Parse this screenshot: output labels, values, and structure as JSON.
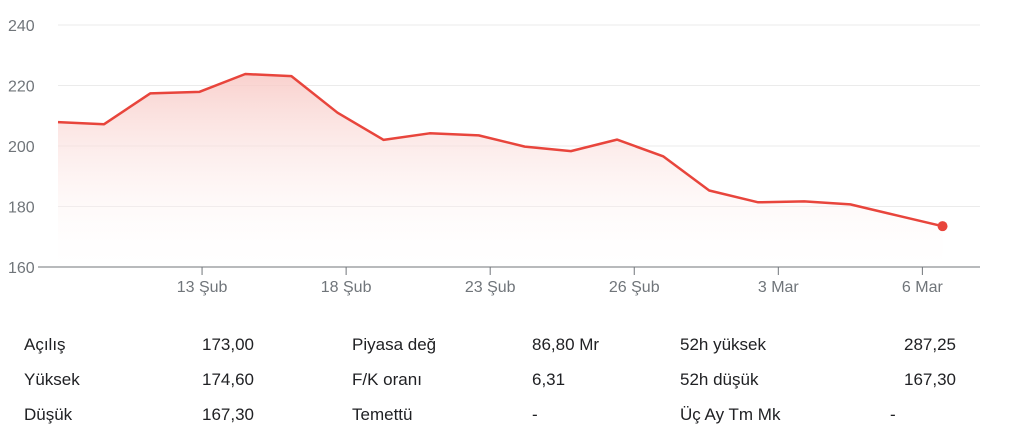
{
  "chart_data": {
    "type": "area",
    "y_ticks": [
      160,
      180,
      200,
      220,
      240
    ],
    "ylim": [
      160,
      240
    ],
    "x_tick_labels": [
      "13 Şub",
      "18 Şub",
      "23 Şub",
      "26 Şub",
      "3 Mar",
      "6 Mar"
    ],
    "x_tick_positions": [
      7,
      12,
      17,
      22,
      27,
      32
    ],
    "x_range": [
      2,
      34
    ],
    "points": [
      {
        "x": 2,
        "y": 207.9
      },
      {
        "x": 3.6,
        "y": 207.2
      },
      {
        "x": 5.2,
        "y": 217.4
      },
      {
        "x": 6.9,
        "y": 217.9
      },
      {
        "x": 8.5,
        "y": 223.8
      },
      {
        "x": 10.1,
        "y": 223.1
      },
      {
        "x": 11.7,
        "y": 211.0
      },
      {
        "x": 13.3,
        "y": 202.0
      },
      {
        "x": 14.9,
        "y": 204.2
      },
      {
        "x": 16.6,
        "y": 203.5
      },
      {
        "x": 18.2,
        "y": 199.8
      },
      {
        "x": 19.8,
        "y": 198.3
      },
      {
        "x": 21.4,
        "y": 202.1
      },
      {
        "x": 23.0,
        "y": 196.6
      },
      {
        "x": 24.6,
        "y": 185.3
      },
      {
        "x": 26.3,
        "y": 181.4
      },
      {
        "x": 27.9,
        "y": 181.7
      },
      {
        "x": 29.5,
        "y": 180.7
      },
      {
        "x": 31.1,
        "y": 177.1
      },
      {
        "x": 32.7,
        "y": 173.5
      }
    ],
    "colors": {
      "line": "#e8453c",
      "fill_top": "#f8c9c5",
      "grid": "#ebebeb",
      "axis": "#70757a"
    }
  },
  "stats": [
    {
      "label": "Açılış",
      "value": "173,00"
    },
    {
      "label": "Yüksek",
      "value": "174,60"
    },
    {
      "label": "Düşük",
      "value": "167,30"
    },
    {
      "label": "Piyasa değ",
      "value": "86,80 Mr"
    },
    {
      "label": "F/K oranı",
      "value": "6,31"
    },
    {
      "label": "Temettü",
      "value": "-"
    },
    {
      "label": "52h yüksek",
      "value": "287,25"
    },
    {
      "label": "52h düşük",
      "value": "167,30"
    },
    {
      "label": "Üç Ay Tm Mk",
      "value": "-"
    }
  ]
}
